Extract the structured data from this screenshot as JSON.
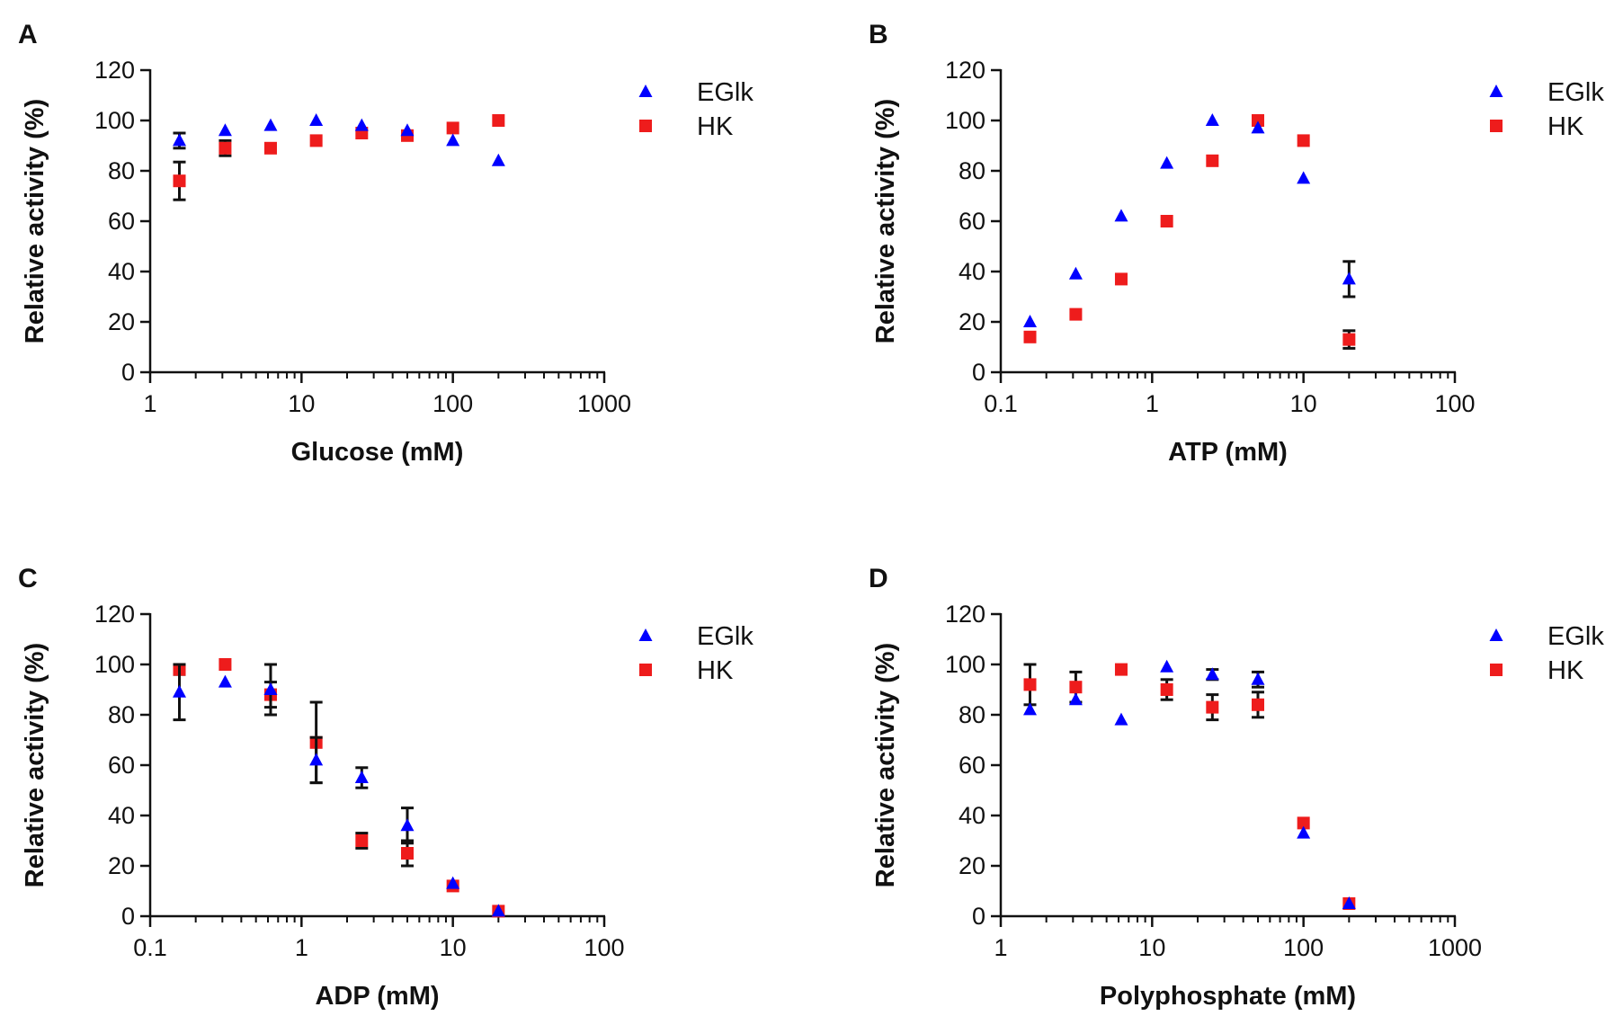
{
  "colors": {
    "eglk": "#0000ff",
    "hk": "#ee1c1c",
    "error_bar": "#111111",
    "axis": "#111111"
  },
  "legend": {
    "eglk": "EGlk",
    "hk": "HK"
  },
  "chart_data": [
    {
      "panel": "A",
      "type": "scatter",
      "xscale": "log",
      "xlabel": "Glucose (mM)",
      "ylabel": "Relative activity (%)",
      "xlim": [
        1,
        1000
      ],
      "ylim": [
        0,
        120
      ],
      "xticks": [
        1,
        10,
        100,
        1000
      ],
      "xtick_labels": [
        "1",
        "10",
        "100",
        "1000"
      ],
      "yticks": [
        0,
        20,
        40,
        60,
        80,
        100,
        120
      ],
      "ytick_labels": [
        "0",
        "20",
        "40",
        "60",
        "80",
        "100",
        "120"
      ],
      "series": [
        {
          "name": "EGlk",
          "marker": "triangle",
          "x": [
            1.56,
            3.13,
            6.25,
            12.5,
            25,
            50,
            100,
            200
          ],
          "y": [
            92,
            96,
            98,
            100,
            98,
            96,
            92,
            84
          ],
          "err": [
            3,
            0,
            0,
            0,
            0,
            0,
            0,
            0
          ]
        },
        {
          "name": "HK",
          "marker": "square",
          "x": [
            1.56,
            3.13,
            6.25,
            12.5,
            25,
            50,
            100,
            200
          ],
          "y": [
            76,
            89,
            89,
            92,
            95,
            94,
            97,
            100
          ],
          "err": [
            7.5,
            3,
            0,
            0,
            0,
            0,
            0,
            0
          ]
        }
      ]
    },
    {
      "panel": "B",
      "type": "scatter",
      "xscale": "log",
      "xlabel": "ATP (mM)",
      "ylabel": "Relative activity (%)",
      "xlim": [
        0.1,
        100
      ],
      "ylim": [
        0,
        120
      ],
      "xticks": [
        0.1,
        1,
        10,
        100
      ],
      "xtick_labels": [
        "0.1",
        "1",
        "10",
        "100"
      ],
      "yticks": [
        0,
        20,
        40,
        60,
        80,
        100,
        120
      ],
      "ytick_labels": [
        "0",
        "20",
        "40",
        "60",
        "80",
        "100",
        "120"
      ],
      "series": [
        {
          "name": "EGlk",
          "marker": "triangle",
          "x": [
            0.156,
            0.313,
            0.625,
            1.25,
            2.5,
            5,
            10,
            20
          ],
          "y": [
            20,
            39,
            62,
            83,
            100,
            97,
            77,
            37
          ],
          "err": [
            0,
            0,
            0,
            0,
            0,
            0,
            0,
            7
          ]
        },
        {
          "name": "HK",
          "marker": "square",
          "x": [
            0.156,
            0.313,
            0.625,
            1.25,
            2.5,
            5,
            10,
            20
          ],
          "y": [
            14,
            23,
            37,
            60,
            84,
            100,
            92,
            13
          ],
          "err": [
            0,
            0,
            0,
            0,
            0,
            0,
            0,
            3.5
          ]
        }
      ]
    },
    {
      "panel": "C",
      "type": "scatter",
      "xscale": "log",
      "xlabel": "ADP (mM)",
      "ylabel": "Relative activity (%)",
      "xlim": [
        0.1,
        100
      ],
      "ylim": [
        0,
        120
      ],
      "xticks": [
        0.1,
        1,
        10,
        100
      ],
      "xtick_labels": [
        "0.1",
        "1",
        "10",
        "100"
      ],
      "yticks": [
        0,
        20,
        40,
        60,
        80,
        100,
        120
      ],
      "ytick_labels": [
        "0",
        "20",
        "40",
        "60",
        "80",
        "100",
        "120"
      ],
      "series": [
        {
          "name": "EGlk",
          "marker": "triangle",
          "x": [
            0.156,
            0.313,
            0.625,
            1.25,
            2.5,
            5,
            10,
            20
          ],
          "y": [
            89,
            93,
            90,
            62,
            55,
            36,
            13,
            2
          ],
          "err": [
            11,
            0,
            10,
            9,
            4,
            7,
            0,
            0
          ]
        },
        {
          "name": "HK",
          "marker": "square",
          "x": [
            0.156,
            0.313,
            0.625,
            1.25,
            2.5,
            5,
            10,
            20
          ],
          "y": [
            98,
            100,
            88,
            69,
            30,
            25,
            12,
            2
          ],
          "err": [
            2,
            0,
            5,
            16,
            3,
            5,
            0,
            0
          ]
        }
      ]
    },
    {
      "panel": "D",
      "type": "scatter",
      "xscale": "log",
      "xlabel": "Polyphosphate (mM)",
      "ylabel": "Relative activity (%)",
      "xlim": [
        1,
        1000
      ],
      "ylim": [
        0,
        120
      ],
      "xticks": [
        1,
        10,
        100,
        1000
      ],
      "xtick_labels": [
        "1",
        "10",
        "100",
        "1000"
      ],
      "yticks": [
        0,
        20,
        40,
        60,
        80,
        100,
        120
      ],
      "ytick_labels": [
        "0",
        "20",
        "40",
        "60",
        "80",
        "100",
        "120"
      ],
      "series": [
        {
          "name": "EGlk",
          "marker": "triangle",
          "x": [
            1.56,
            3.13,
            6.25,
            12.5,
            25,
            50,
            100,
            200
          ],
          "y": [
            82,
            86,
            78,
            99,
            96,
            94,
            33,
            5
          ],
          "err": [
            0,
            0,
            0,
            0,
            2,
            3,
            0,
            0
          ]
        },
        {
          "name": "HK",
          "marker": "square",
          "x": [
            1.56,
            3.13,
            6.25,
            12.5,
            25,
            50,
            100,
            200
          ],
          "y": [
            92,
            91,
            98,
            90,
            83,
            84,
            37,
            5
          ],
          "err": [
            8,
            6,
            0,
            4,
            5,
            5,
            0,
            0
          ]
        }
      ]
    }
  ]
}
